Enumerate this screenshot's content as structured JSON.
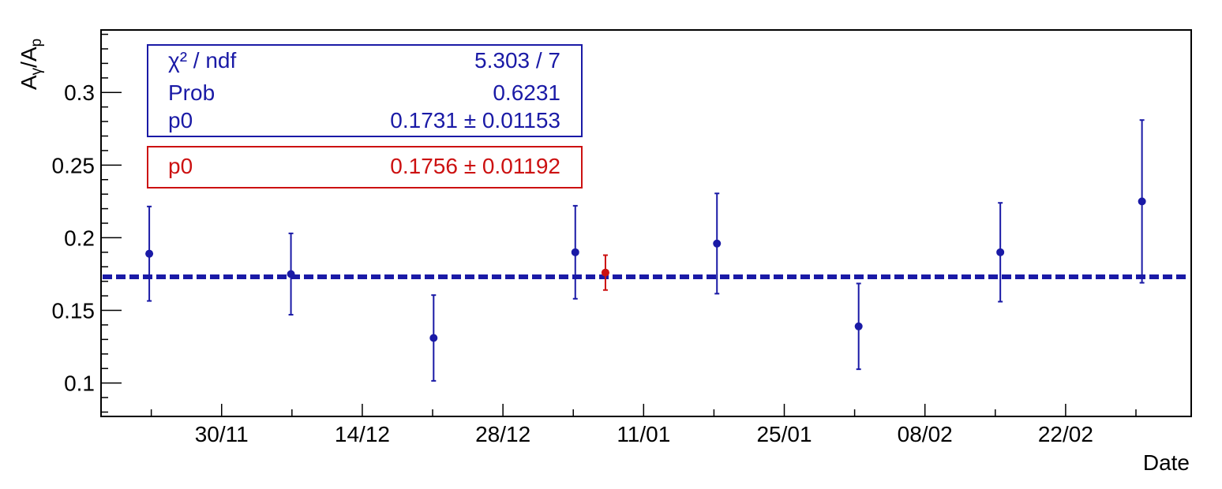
{
  "chart_data": {
    "type": "scatter",
    "xlabel": "Date",
    "ylabel": {
      "base": "A",
      "sub1": "γ",
      "mid": "/A",
      "sub2": "p"
    },
    "x_tick_labels": [
      "30/11",
      "14/12",
      "28/12",
      "11/01",
      "25/01",
      "08/02",
      "22/02"
    ],
    "y_tick_labels": [
      "0.1",
      "0.15",
      "0.2",
      "0.25",
      "0.3"
    ],
    "y_ticks": [
      0.1,
      0.15,
      0.2,
      0.25,
      0.3
    ],
    "x_major_days": [
      30,
      44,
      58,
      72,
      86,
      100,
      114
    ],
    "xlim_days": [
      18,
      126.5
    ],
    "ylim": [
      0.077,
      0.343
    ],
    "grid": false,
    "series": [
      {
        "color": "#1a1aa6",
        "points": [
          {
            "x_day": 22.8,
            "y": 0.189,
            "err": 0.0325
          },
          {
            "x_day": 36.9,
            "y": 0.175,
            "err": 0.028
          },
          {
            "x_day": 51.1,
            "y": 0.131,
            "err": 0.0295
          },
          {
            "x_day": 65.2,
            "y": 0.19,
            "err": 0.032
          },
          {
            "x_day": 79.3,
            "y": 0.196,
            "err": 0.0345
          },
          {
            "x_day": 93.4,
            "y": 0.139,
            "err": 0.0295
          },
          {
            "x_day": 107.5,
            "y": 0.19,
            "err": 0.034
          },
          {
            "x_day": 121.6,
            "y": 0.225,
            "err": 0.056
          }
        ]
      },
      {
        "color": "#cc1111",
        "points": [
          {
            "x_day": 68.2,
            "y": 0.176,
            "err": 0.012
          }
        ]
      }
    ],
    "fit": {
      "value": 0.1731,
      "color": "#1a1aa6",
      "style": "dashed"
    },
    "stat_boxes": [
      {
        "color": "#1a1aa6",
        "rows": [
          {
            "name": "χ² / ndf",
            "value": "5.303 / 7"
          },
          {
            "name": "Prob",
            "value": "0.6231"
          },
          {
            "name": "p0",
            "value": "0.1731 ± 0.01153"
          }
        ]
      },
      {
        "color": "#cc1111",
        "rows": [
          {
            "name": "p0",
            "value": "0.1756 ± 0.01192"
          }
        ]
      }
    ]
  }
}
